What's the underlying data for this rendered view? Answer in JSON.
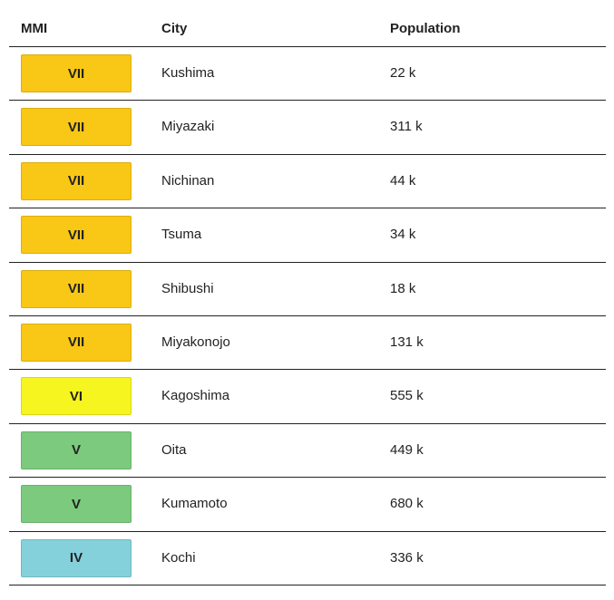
{
  "table": {
    "columns": [
      "MMI",
      "City",
      "Population"
    ],
    "rows": [
      [
        "VII",
        "Kushima",
        "22 k"
      ],
      [
        "VII",
        "Miyazaki",
        "311 k"
      ],
      [
        "VII",
        "Nichinan",
        "44 k"
      ],
      [
        "VII",
        "Tsuma",
        "34 k"
      ],
      [
        "VII",
        "Shibushi",
        "18 k"
      ],
      [
        "VII",
        "Miyakonojo",
        "131 k"
      ],
      [
        "VI",
        "Kagoshima",
        "555 k"
      ],
      [
        "V",
        "Oita",
        "449 k"
      ],
      [
        "V",
        "Kumamoto",
        "680 k"
      ],
      [
        "IV",
        "Kochi",
        "336 k"
      ]
    ],
    "mmi_colors": {
      "VII": "#f9c715",
      "VI": "#f7f51f",
      "V": "#7bca7d",
      "IV": "#85d1db"
    }
  }
}
